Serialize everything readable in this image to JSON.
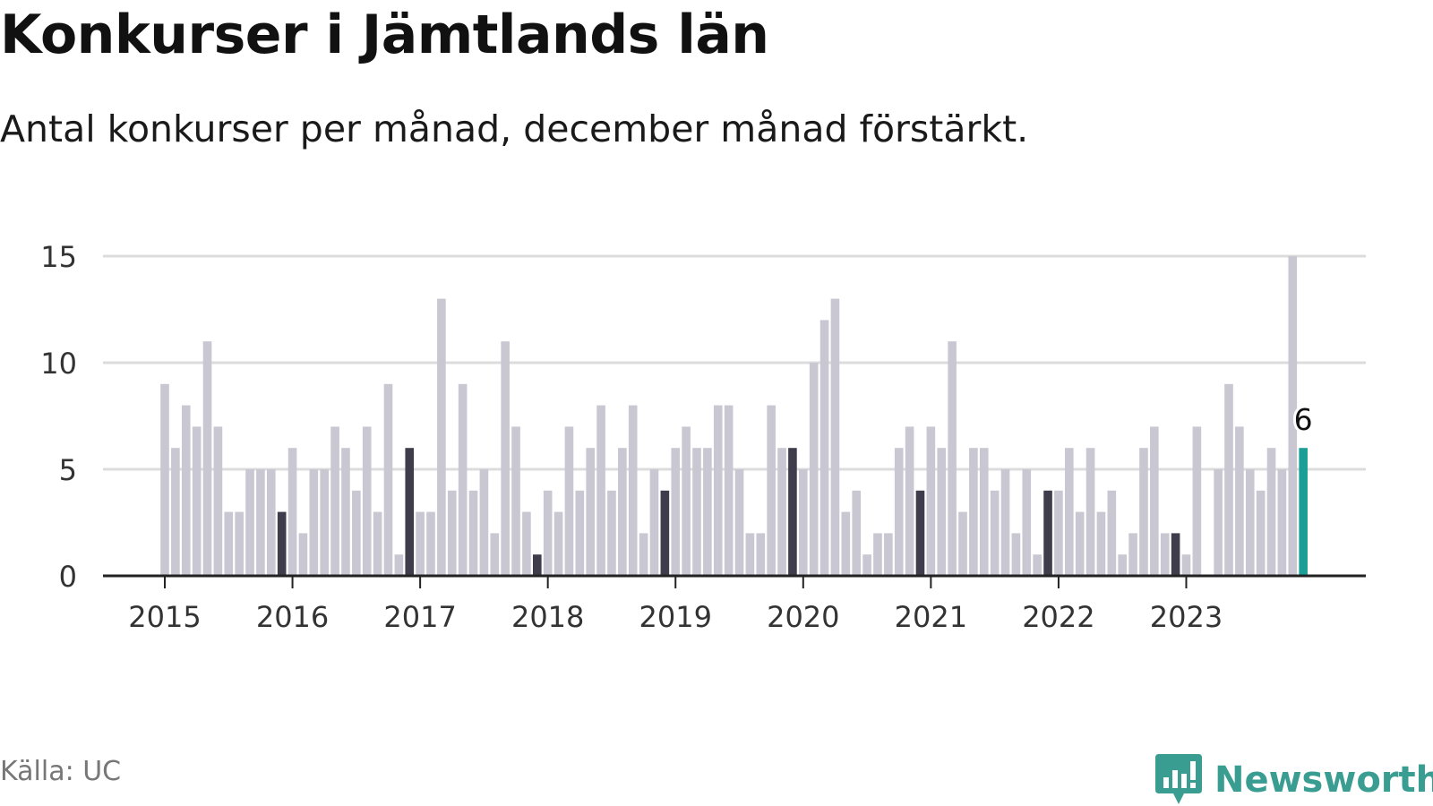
{
  "header": {
    "title": "Konkurser i Jämtlands län",
    "subtitle": "Antal konkurser per månad, december månad förstärkt."
  },
  "footer": {
    "source": "Källa: UC",
    "brand": "Newsworthy",
    "brand_icon": "bar-chart-speech-bubble-icon"
  },
  "colors": {
    "bar": "#c8c7d2",
    "december": "#3f3d4b",
    "highlight": "#1a9e96",
    "brand": "#3a9d92",
    "grid": "#dcdcdc",
    "axis": "#222222"
  },
  "chart_data": {
    "type": "bar",
    "x_start": "2015-01",
    "x_end": "2023-12",
    "frequency": "monthly",
    "ylim": [
      0,
      15
    ],
    "yticks": [
      0,
      5,
      10,
      15
    ],
    "xticks": [
      "2015",
      "2016",
      "2017",
      "2018",
      "2019",
      "2020",
      "2021",
      "2022",
      "2023"
    ],
    "grid": true,
    "values": [
      9,
      6,
      8,
      7,
      11,
      7,
      3,
      3,
      5,
      5,
      5,
      3,
      6,
      2,
      5,
      5,
      7,
      6,
      4,
      7,
      3,
      9,
      1,
      6,
      3,
      3,
      13,
      4,
      9,
      4,
      5,
      2,
      11,
      7,
      3,
      1,
      4,
      3,
      7,
      4,
      6,
      8,
      4,
      6,
      8,
      2,
      5,
      4,
      6,
      7,
      6,
      6,
      8,
      8,
      5,
      2,
      2,
      8,
      6,
      6,
      5,
      10,
      12,
      13,
      3,
      4,
      1,
      2,
      2,
      6,
      7,
      4,
      7,
      6,
      11,
      3,
      6,
      6,
      4,
      5,
      2,
      5,
      1,
      4,
      4,
      6,
      3,
      6,
      3,
      4,
      1,
      2,
      6,
      7,
      2,
      2,
      1,
      7,
      0,
      5,
      9,
      7,
      5,
      4,
      6,
      5,
      15,
      6
    ],
    "highlight_label": "6"
  }
}
